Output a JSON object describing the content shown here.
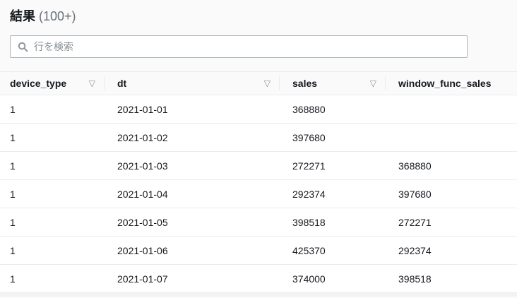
{
  "header": {
    "title": "結果",
    "count": "(100+)"
  },
  "search": {
    "placeholder": "行を検索",
    "value": ""
  },
  "icons": {
    "sort_glyph": "▽",
    "search_icon": "magnifying-glass"
  },
  "colors": {
    "text": "#16191f",
    "muted_text": "#687078",
    "icon_gray": "#879196",
    "border": "#eaeded",
    "input_border": "#aab7b8",
    "header_bg": "#fafafa",
    "row_bg": "#ffffff"
  },
  "table": {
    "columns": [
      {
        "label": "device_type",
        "sortable": true
      },
      {
        "label": "dt",
        "sortable": true
      },
      {
        "label": "sales",
        "sortable": true
      },
      {
        "label": "window_func_sales",
        "sortable": false
      }
    ],
    "rows": [
      [
        "1",
        "2021-01-01",
        "368880",
        ""
      ],
      [
        "1",
        "2021-01-02",
        "397680",
        ""
      ],
      [
        "1",
        "2021-01-03",
        "272271",
        "368880"
      ],
      [
        "1",
        "2021-01-04",
        "292374",
        "397680"
      ],
      [
        "1",
        "2021-01-05",
        "398518",
        "272271"
      ],
      [
        "1",
        "2021-01-06",
        "425370",
        "292374"
      ],
      [
        "1",
        "2021-01-07",
        "374000",
        "398518"
      ]
    ]
  }
}
